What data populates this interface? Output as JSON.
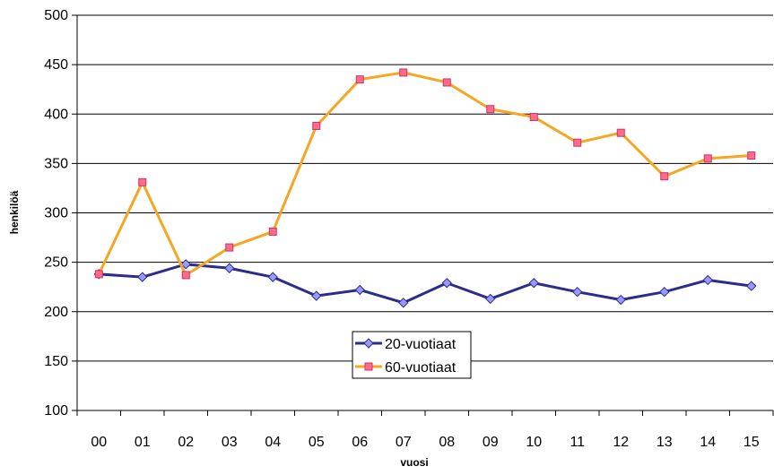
{
  "chart_data": {
    "type": "line",
    "title": "",
    "xlabel": "vuosi",
    "ylabel": "henkilöä",
    "categories": [
      "00",
      "01",
      "02",
      "03",
      "04",
      "05",
      "06",
      "07",
      "08",
      "09",
      "10",
      "11",
      "12",
      "13",
      "14",
      "15"
    ],
    "ylim": [
      100,
      500
    ],
    "yticks": [
      100,
      150,
      200,
      250,
      300,
      350,
      400,
      450,
      500
    ],
    "grid": "horizontal",
    "legend_position": "center",
    "series": [
      {
        "name": "20-vuotiaat",
        "color": "#2B2C8C",
        "marker_fill": "#9999FF",
        "marker": "diamond",
        "values": [
          238,
          235,
          248,
          244,
          235,
          216,
          222,
          209,
          229,
          213,
          229,
          220,
          212,
          220,
          232,
          226
        ]
      },
      {
        "name": "60-vuotiaat",
        "color": "#F5A623",
        "marker_fill": "#FF6B8B",
        "marker": "square",
        "values": [
          238,
          331,
          237,
          265,
          281,
          388,
          435,
          442,
          432,
          405,
          397,
          371,
          381,
          337,
          355,
          358
        ]
      }
    ]
  }
}
